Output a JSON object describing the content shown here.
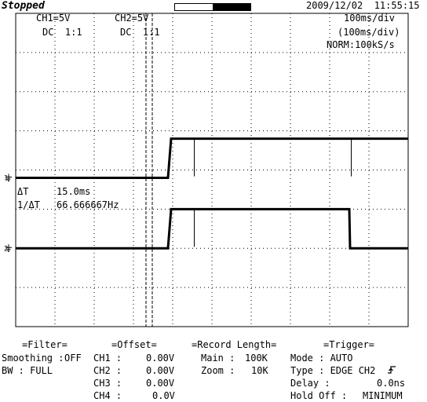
{
  "header": {
    "status": "Stopped",
    "datetime": "2009/12/02  11:55:15",
    "record_window": {
      "start_fraction": 0.5,
      "end_fraction": 1.0
    }
  },
  "channels": {
    "ch1": {
      "scale": "CH1=5V",
      "coupling": "DC  1:1"
    },
    "ch2": {
      "scale": "CH2=5V",
      "coupling": "DC  1:1"
    }
  },
  "timebase": {
    "time_div": "100ms/div",
    "time_div_paren": "(100ms/div)",
    "sample": "NORM:100kS/s"
  },
  "markers": {
    "ch1": "1",
    "ch2": "2"
  },
  "measurement": {
    "delta_t_label": "ΔT",
    "delta_t_value": "15.0ms",
    "inv_label": "1/ΔT",
    "inv_value": "66.666667Hz"
  },
  "waveforms": {
    "ch1": {
      "low_level_div": -0.2,
      "high_level_div": 0.8,
      "rise_time_div": 3.92,
      "points": []
    },
    "ch2": {
      "low_level_div": -2.0,
      "high_level_div": -1.0,
      "rise_time_div": 3.92,
      "fall_time_div": 8.5
    },
    "cursors_div": [
      3.32,
      3.48
    ]
  },
  "panels": {
    "filter": {
      "title": "=Filter=",
      "smoothing_label": "Smoothing :",
      "smoothing_value": "OFF",
      "bw_label": "BW : FULL"
    },
    "offset": {
      "title": "=Offset=",
      "rows": [
        {
          "label": "CH1 :",
          "value": "0.00V"
        },
        {
          "label": "CH2 :",
          "value": "0.00V"
        },
        {
          "label": "CH3 :",
          "value": "0.00V"
        },
        {
          "label": "CH4 :",
          "value": "0.0V"
        }
      ]
    },
    "record": {
      "title": "=Record Length=",
      "main_label": "Main :",
      "main_value": "100K",
      "zoom_label": "Zoom :",
      "zoom_value": "10K"
    },
    "trigger": {
      "title": "=Trigger=",
      "mode": "Mode : AUTO",
      "type": "Type : EDGE CH2",
      "delay_label": "Delay :",
      "delay_value": "0.0ns",
      "holdoff_label": "Hold Off :",
      "holdoff_value": "MINIMUM"
    }
  }
}
